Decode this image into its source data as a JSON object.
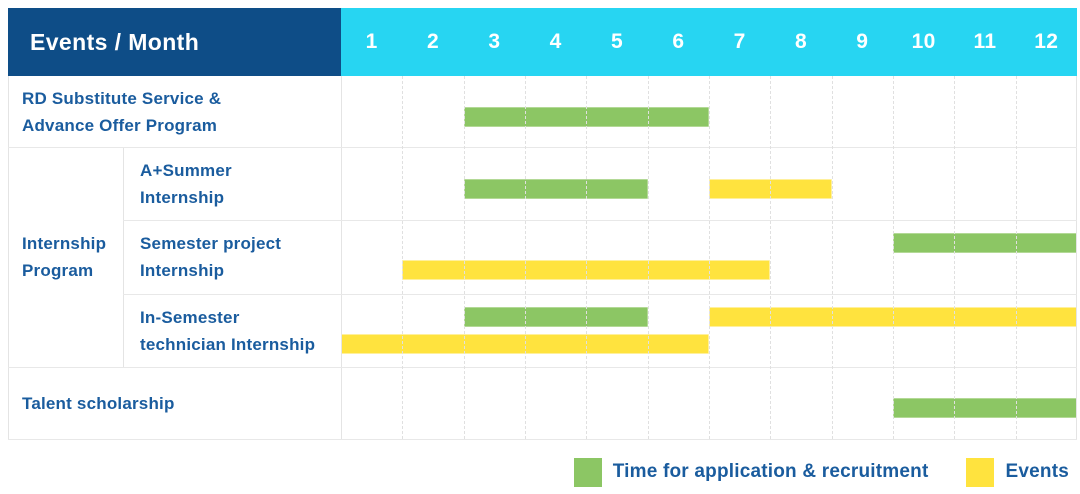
{
  "header": {
    "label": "Events / Month"
  },
  "chart_data": {
    "type": "gantt",
    "title": "Events / Month",
    "months": [
      "1",
      "2",
      "3",
      "4",
      "5",
      "6",
      "7",
      "8",
      "9",
      "10",
      "11",
      "12"
    ],
    "x_range": [
      1,
      12
    ],
    "colors": {
      "application": "#8cc664",
      "application_border": "#b3d996",
      "event": "#ffe33e",
      "event_border": "#fff09c",
      "header_bg": "#0e4d87",
      "month_strip_bg": "#27d5f2",
      "text": "#1a5c9e"
    },
    "group": {
      "label_lines": [
        "Internship",
        "Program"
      ]
    },
    "rows": [
      {
        "label": "RD Substitute Service & Advance Offer Program",
        "label_lines": [
          "RD Substitute Service &",
          "Advance Offer Program"
        ],
        "in_group": false,
        "lines": 1,
        "bars": [
          {
            "type": "application",
            "start": 3,
            "end": 6,
            "line": 0
          }
        ]
      },
      {
        "label": "A+Summer Internship",
        "label_lines": [
          "A+Summer",
          "Internship"
        ],
        "in_group": true,
        "lines": 1,
        "bars": [
          {
            "type": "application",
            "start": 3,
            "end": 5,
            "line": 0
          },
          {
            "type": "event",
            "start": 7,
            "end": 8,
            "line": 0
          }
        ]
      },
      {
        "label": "Semester project Internship",
        "label_lines": [
          "Semester project",
          "Internship"
        ],
        "in_group": true,
        "lines": 2,
        "bars": [
          {
            "type": "application",
            "start": 10,
            "end": 12,
            "line": 0
          },
          {
            "type": "event",
            "start": 2,
            "end": 7,
            "line": 1
          }
        ]
      },
      {
        "label": "In-Semester technician Internship",
        "label_lines": [
          "In-Semester",
          "technician Internship"
        ],
        "in_group": true,
        "lines": 2,
        "bars": [
          {
            "type": "application",
            "start": 3,
            "end": 5,
            "line": 0
          },
          {
            "type": "event",
            "start": 7,
            "end": 12,
            "line": 0
          },
          {
            "type": "event",
            "start": 1,
            "end": 6,
            "line": 1
          }
        ]
      },
      {
        "label": "Talent scholarship",
        "label_lines": [
          "Talent scholarship"
        ],
        "in_group": false,
        "lines": 1,
        "bars": [
          {
            "type": "application",
            "start": 10,
            "end": 12,
            "line": 0
          }
        ]
      }
    ],
    "legend": [
      {
        "type": "application",
        "label": "Time for application & recruitment"
      },
      {
        "type": "event",
        "label": "Events"
      }
    ],
    "legend_position": "bottom-right"
  }
}
